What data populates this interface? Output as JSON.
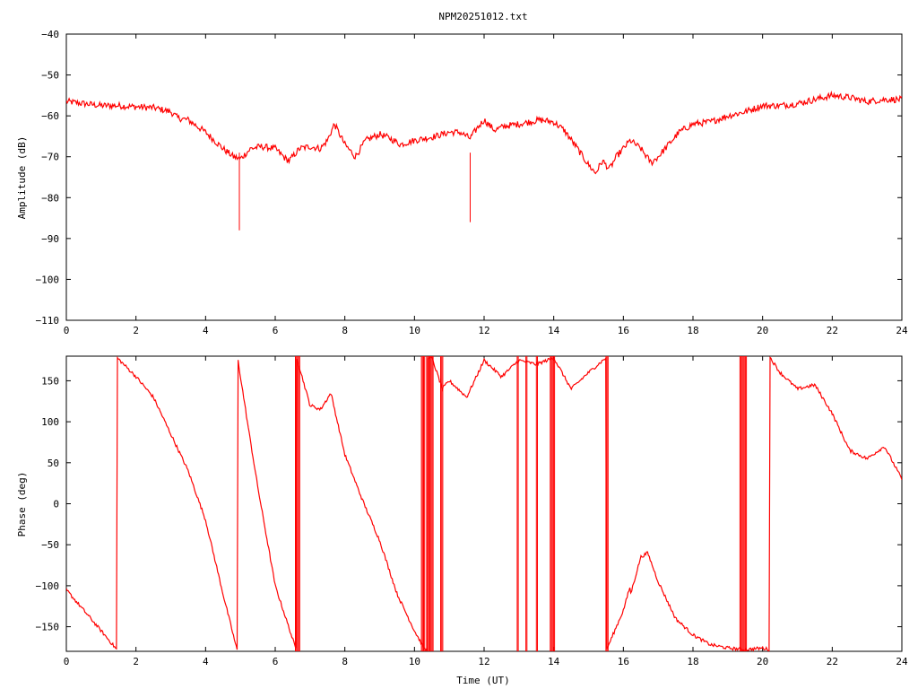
{
  "title": "NPM20251012.txt",
  "colors": {
    "series": "#ff0000",
    "axis": "#000000",
    "background": "#ffffff"
  },
  "chart_data": [
    {
      "type": "line",
      "name": "amplitude",
      "xlabel": "",
      "ylabel": "Amplitude (dB)",
      "xlim": [
        0,
        24
      ],
      "ylim": [
        -110,
        -40
      ],
      "xticks": [
        0,
        2,
        4,
        6,
        8,
        10,
        12,
        14,
        16,
        18,
        20,
        22,
        24
      ],
      "yticks": [
        -40,
        -50,
        -60,
        -70,
        -80,
        -90,
        -100,
        -110
      ],
      "grid": false,
      "noise": 0.8,
      "x": [
        0,
        0.5,
        1,
        1.5,
        2,
        2.5,
        3,
        3.2,
        3.5,
        4,
        4.5,
        4.8,
        5.0,
        5.3,
        5.6,
        6.0,
        6.3,
        6.4,
        6.7,
        7.0,
        7.3,
        7.5,
        7.7,
        8.0,
        8.3,
        8.6,
        9.0,
        9.3,
        9.6,
        10.0,
        10.3,
        10.6,
        11.0,
        11.3,
        11.6,
        11.8,
        12.0,
        12.3,
        12.6,
        13.0,
        13.3,
        13.6,
        14.0,
        14.3,
        14.6,
        15.0,
        15.2,
        15.4,
        15.6,
        15.8,
        16.0,
        16.2,
        16.5,
        16.8,
        17.0,
        17.3,
        17.6,
        18.0,
        18.5,
        19.0,
        19.5,
        20.0,
        20.5,
        21.0,
        21.5,
        22.0,
        22.5,
        23.0,
        23.5,
        24.0
      ],
      "y": [
        -56.5,
        -57,
        -57.5,
        -57.5,
        -57.8,
        -58,
        -59,
        -60.5,
        -61,
        -64,
        -68,
        -70,
        -70.5,
        -68,
        -67.5,
        -68,
        -70.5,
        -71,
        -68,
        -67.5,
        -68,
        -66,
        -62,
        -67,
        -70,
        -66,
        -64.5,
        -65.5,
        -67,
        -66,
        -65.5,
        -65,
        -64,
        -64,
        -65.5,
        -63,
        -61,
        -63.5,
        -62.5,
        -62,
        -61.5,
        -61,
        -61.5,
        -63.5,
        -67,
        -72,
        -74,
        -71,
        -73,
        -70,
        -68,
        -66,
        -68,
        -71.5,
        -70,
        -67,
        -64,
        -62,
        -61.5,
        -60,
        -59,
        -57.5,
        -57.5,
        -57,
        -56,
        -55,
        -55.5,
        -56.5,
        -56,
        -56
      ],
      "spikes": [
        {
          "x": 4.97,
          "y": -88
        },
        {
          "x": 11.6,
          "y": -86
        }
      ]
    },
    {
      "type": "line",
      "name": "phase",
      "xlabel": "Time (UT)",
      "ylabel": "Phase (deg)",
      "xlim": [
        0,
        24
      ],
      "ylim": [
        -180,
        180
      ],
      "xticks": [
        0,
        2,
        4,
        6,
        8,
        10,
        12,
        14,
        16,
        18,
        20,
        22,
        24
      ],
      "yticks": [
        150,
        100,
        50,
        0,
        -50,
        -100,
        -150
      ],
      "grid": false,
      "noise": 2,
      "x": [
        0,
        0.5,
        1.0,
        1.45,
        1.46,
        2.0,
        2.5,
        3.0,
        3.5,
        4.0,
        4.5,
        4.9,
        4.92,
        5.2,
        5.5,
        6.0,
        6.6,
        6.62,
        7.0,
        7.3,
        7.6,
        8.0,
        8.5,
        9.0,
        9.5,
        10.0,
        10.3,
        10.5,
        10.8,
        11.0,
        11.5,
        12.0,
        12.5,
        13.0,
        13.5,
        14.0,
        14.5,
        15.0,
        15.5,
        15.52,
        16.0,
        16.2,
        16.21,
        16.5,
        16.7,
        17.0,
        17.5,
        18.0,
        18.5,
        19.0,
        19.5,
        20.0,
        20.2,
        20.22,
        20.5,
        21.0,
        21.5,
        22.0,
        22.5,
        23.0,
        23.5,
        24.0
      ],
      "y": [
        -105,
        -130,
        -155,
        -178,
        178,
        155,
        130,
        85,
        40,
        -20,
        -110,
        -178,
        178,
        100,
        20,
        -100,
        -178,
        178,
        120,
        115,
        135,
        60,
        5,
        -45,
        -110,
        -155,
        -178,
        178,
        140,
        150,
        130,
        175,
        155,
        175,
        170,
        178,
        140,
        160,
        178,
        -178,
        -130,
        -100,
        -110,
        -65,
        -60,
        -95,
        -140,
        -160,
        -172,
        -176,
        -178,
        -176,
        -178,
        178,
        160,
        140,
        145,
        110,
        65,
        55,
        70,
        30
      ],
      "bursts": [
        {
          "x0": 6.58,
          "x1": 6.72
        },
        {
          "x0": 10.2,
          "x1": 10.3
        },
        {
          "x0": 10.35,
          "x1": 10.55
        },
        {
          "x0": 10.75,
          "x1": 10.82
        },
        {
          "x0": 12.95,
          "x1": 13.0
        },
        {
          "x0": 13.2,
          "x1": 13.25
        },
        {
          "x0": 13.5,
          "x1": 13.55
        },
        {
          "x0": 13.9,
          "x1": 14.05
        },
        {
          "x0": 15.5,
          "x1": 15.58
        },
        {
          "x0": 19.35,
          "x1": 19.55
        }
      ]
    }
  ]
}
